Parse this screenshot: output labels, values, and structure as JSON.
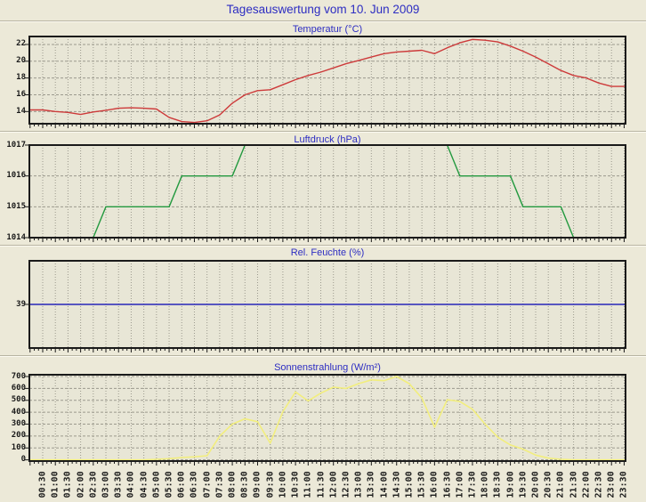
{
  "page": {
    "title": "Tagesauswertung vom 10. Jun 2009"
  },
  "colors": {
    "page_bg": "#ece9d8",
    "plot_bg": "#e8e6d6",
    "grid": "#9b998d",
    "border": "#1a1a1a",
    "title_text": "#2d2dc2",
    "axis_text": "#1a1a1a",
    "temperature_line": "#cd3a3a",
    "pressure_line": "#23993f",
    "humidity_line": "#2727b8",
    "solar_line": "#f2ee7d"
  },
  "x_axis": {
    "categories": [
      "00:30",
      "01:00",
      "01:30",
      "02:00",
      "02:30",
      "03:00",
      "03:30",
      "04:00",
      "04:30",
      "05:00",
      "05:30",
      "06:00",
      "06:30",
      "07:00",
      "07:30",
      "08:00",
      "08:30",
      "09:00",
      "09:30",
      "10:00",
      "10:30",
      "11:00",
      "11:30",
      "12:00",
      "12:30",
      "13:00",
      "13:30",
      "14:00",
      "14:30",
      "15:00",
      "15:30",
      "16:00",
      "16:30",
      "17:00",
      "17:30",
      "18:00",
      "18:30",
      "19:00",
      "19:30",
      "20:00",
      "20:30",
      "21:00",
      "21:30",
      "22:00",
      "22:30",
      "23:00",
      "23:30"
    ]
  },
  "chart_data": [
    {
      "type": "line",
      "title": "Temperatur (°C)",
      "legend": "none",
      "grid": "on",
      "color_key": "temperature_line",
      "ylim": [
        12.55,
        22.95
      ],
      "yticks": [
        22,
        20,
        18,
        16,
        14
      ],
      "values": [
        14.2,
        14.0,
        13.9,
        13.65,
        13.95,
        14.15,
        14.4,
        14.45,
        14.4,
        14.3,
        13.3,
        12.8,
        12.7,
        12.9,
        13.6,
        15.0,
        16.0,
        16.5,
        16.6,
        17.2,
        17.8,
        18.3,
        18.7,
        19.2,
        19.7,
        20.1,
        20.5,
        20.9,
        21.1,
        21.2,
        21.3,
        20.9,
        21.6,
        22.2,
        22.6,
        22.5,
        22.3,
        21.8,
        21.2,
        20.5,
        19.7,
        18.9,
        18.3,
        18.0,
        17.4,
        17.0,
        17.0
      ]
    },
    {
      "type": "line",
      "title": "Luftdruck (hPa)",
      "legend": "none",
      "grid": "on",
      "color_key": "pressure_line",
      "ylim": [
        1014,
        1017
      ],
      "yticks": [
        1017,
        1016,
        1015,
        1014
      ],
      "values": [
        1014,
        1014,
        1014,
        1014,
        1014,
        1015,
        1015,
        1015,
        1015,
        1015,
        1015,
        1016,
        1016,
        1016,
        1016,
        1016,
        1017,
        1017,
        1017,
        1017,
        1017,
        1017,
        1017,
        1017,
        1017,
        1017,
        1017,
        1017,
        1017,
        1017,
        1017,
        1017,
        1017,
        1016,
        1016,
        1016,
        1016,
        1016,
        1015,
        1015,
        1015,
        1015,
        1014,
        1014,
        1014,
        1014,
        1014
      ]
    },
    {
      "type": "line",
      "title": "Rel. Feuchte (%)",
      "legend": "none",
      "grid": "on",
      "color_key": "humidity_line",
      "ylim": [
        34.2,
        43.8
      ],
      "yticks": [
        39
      ],
      "values": [
        39,
        39,
        39,
        39,
        39,
        39,
        39,
        39,
        39,
        39,
        39,
        39,
        39,
        39,
        39,
        39,
        39,
        39,
        39,
        39,
        39,
        39,
        39,
        39,
        39,
        39,
        39,
        39,
        39,
        39,
        39,
        39,
        39,
        39,
        39,
        39,
        39,
        39,
        39,
        39,
        39,
        39,
        39,
        39,
        39,
        39,
        39
      ]
    },
    {
      "type": "line",
      "title": "Sonnenstrahlung (W/m²)",
      "legend": "none",
      "grid": "on",
      "color_key": "solar_line",
      "ylim": [
        -10,
        715
      ],
      "yticks": [
        700,
        600,
        500,
        400,
        300,
        200,
        100,
        0
      ],
      "values": [
        0,
        0,
        0,
        0,
        0,
        0,
        0,
        0,
        0,
        5,
        10,
        20,
        25,
        35,
        200,
        300,
        345,
        320,
        140,
        405,
        570,
        495,
        560,
        610,
        600,
        640,
        672,
        665,
        700,
        640,
        520,
        275,
        505,
        490,
        425,
        300,
        190,
        125,
        90,
        40,
        15,
        5,
        0,
        0,
        0,
        0,
        0
      ]
    }
  ]
}
